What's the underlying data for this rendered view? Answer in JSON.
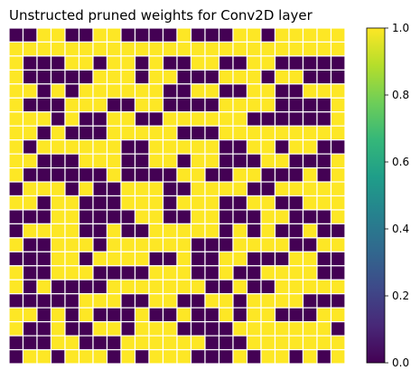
{
  "chart_data": {
    "type": "heatmap",
    "title": "Unstructed pruned weights for Conv2D layer",
    "rows": 24,
    "cols": 24,
    "value_range": [
      0,
      1
    ],
    "colormap": "viridis",
    "low_color": "#440154",
    "high_color": "#fde725",
    "grid": true,
    "grid_color": "#ffffff",
    "axes_visible": false,
    "colorbar": {
      "position": "right",
      "ticks": [
        0,
        0.2,
        0.4,
        0.6,
        0.8,
        1
      ],
      "tick_labels": [
        "0.0",
        "0.2",
        "0.4",
        "0.6",
        "0.8",
        "1.0"
      ]
    },
    "matrix": [
      [
        0,
        0,
        1,
        1,
        0,
        0,
        1,
        1,
        0,
        0,
        0,
        0,
        1,
        0,
        0,
        0,
        1,
        1,
        0,
        1,
        1,
        1,
        1,
        1
      ],
      [
        1,
        1,
        1,
        1,
        1,
        1,
        1,
        1,
        1,
        1,
        1,
        1,
        1,
        1,
        1,
        1,
        1,
        1,
        1,
        1,
        1,
        1,
        1,
        1
      ],
      [
        1,
        0,
        0,
        0,
        1,
        1,
        0,
        1,
        1,
        0,
        1,
        0,
        0,
        1,
        1,
        0,
        0,
        1,
        1,
        0,
        0,
        0,
        0,
        0
      ],
      [
        1,
        0,
        0,
        0,
        0,
        0,
        1,
        1,
        1,
        0,
        1,
        1,
        0,
        0,
        0,
        1,
        1,
        1,
        0,
        1,
        1,
        0,
        0,
        0
      ],
      [
        1,
        1,
        0,
        1,
        0,
        1,
        1,
        1,
        1,
        1,
        1,
        0,
        0,
        1,
        1,
        0,
        0,
        1,
        1,
        0,
        0,
        1,
        1,
        1
      ],
      [
        1,
        0,
        0,
        0,
        1,
        1,
        1,
        0,
        0,
        1,
        1,
        0,
        0,
        0,
        0,
        1,
        1,
        1,
        1,
        0,
        0,
        0,
        0,
        1
      ],
      [
        1,
        1,
        1,
        0,
        1,
        0,
        0,
        1,
        1,
        0,
        0,
        1,
        1,
        1,
        1,
        1,
        1,
        0,
        0,
        0,
        0,
        0,
        0,
        1
      ],
      [
        1,
        1,
        0,
        1,
        0,
        0,
        0,
        1,
        1,
        1,
        1,
        1,
        0,
        0,
        0,
        1,
        1,
        1,
        1,
        1,
        1,
        1,
        1,
        1
      ],
      [
        1,
        0,
        1,
        1,
        1,
        1,
        1,
        1,
        0,
        0,
        1,
        1,
        1,
        1,
        1,
        0,
        0,
        1,
        1,
        0,
        1,
        1,
        0,
        0
      ],
      [
        1,
        1,
        0,
        0,
        0,
        1,
        1,
        1,
        0,
        0,
        1,
        1,
        0,
        1,
        1,
        0,
        0,
        0,
        1,
        1,
        0,
        0,
        0,
        1
      ],
      [
        1,
        0,
        0,
        0,
        0,
        0,
        0,
        1,
        0,
        0,
        0,
        0,
        1,
        1,
        0,
        0,
        1,
        1,
        0,
        0,
        0,
        1,
        0,
        1
      ],
      [
        0,
        1,
        1,
        1,
        0,
        1,
        0,
        0,
        1,
        1,
        1,
        0,
        0,
        1,
        1,
        1,
        1,
        0,
        0,
        1,
        1,
        1,
        1,
        1
      ],
      [
        1,
        1,
        0,
        1,
        1,
        0,
        0,
        0,
        1,
        1,
        1,
        0,
        1,
        1,
        1,
        0,
        0,
        1,
        1,
        0,
        0,
        1,
        1,
        1
      ],
      [
        0,
        0,
        0,
        1,
        1,
        0,
        0,
        0,
        0,
        1,
        1,
        0,
        0,
        1,
        1,
        0,
        0,
        0,
        1,
        1,
        0,
        0,
        0,
        1
      ],
      [
        0,
        1,
        1,
        1,
        1,
        0,
        0,
        1,
        0,
        0,
        1,
        1,
        1,
        1,
        1,
        0,
        1,
        0,
        1,
        0,
        0,
        1,
        0,
        0
      ],
      [
        1,
        0,
        0,
        1,
        1,
        1,
        0,
        1,
        1,
        1,
        1,
        1,
        1,
        0,
        0,
        0,
        1,
        1,
        1,
        1,
        0,
        0,
        1,
        1
      ],
      [
        0,
        0,
        0,
        1,
        1,
        0,
        1,
        1,
        1,
        1,
        0,
        0,
        1,
        0,
        0,
        1,
        1,
        0,
        0,
        0,
        1,
        1,
        0,
        0
      ],
      [
        1,
        0,
        0,
        1,
        1,
        1,
        0,
        0,
        0,
        0,
        1,
        1,
        1,
        0,
        0,
        1,
        0,
        0,
        1,
        1,
        1,
        1,
        0,
        0
      ],
      [
        1,
        0,
        1,
        0,
        0,
        0,
        0,
        1,
        1,
        1,
        1,
        1,
        1,
        1,
        0,
        0,
        1,
        0,
        0,
        1,
        1,
        1,
        1,
        1
      ],
      [
        0,
        0,
        0,
        0,
        0,
        1,
        1,
        1,
        0,
        0,
        1,
        1,
        0,
        0,
        1,
        1,
        0,
        1,
        1,
        1,
        1,
        0,
        0,
        0
      ],
      [
        1,
        1,
        0,
        1,
        0,
        1,
        0,
        0,
        0,
        1,
        0,
        0,
        1,
        0,
        0,
        1,
        0,
        1,
        1,
        0,
        0,
        0,
        1,
        1
      ],
      [
        1,
        0,
        0,
        1,
        0,
        0,
        1,
        1,
        0,
        1,
        1,
        1,
        0,
        0,
        0,
        0,
        1,
        1,
        1,
        1,
        1,
        1,
        1,
        0
      ],
      [
        0,
        0,
        0,
        1,
        1,
        0,
        0,
        0,
        1,
        1,
        1,
        1,
        1,
        1,
        0,
        0,
        0,
        1,
        1,
        1,
        1,
        1,
        1,
        1
      ],
      [
        0,
        1,
        1,
        0,
        1,
        1,
        1,
        0,
        1,
        0,
        1,
        1,
        1,
        0,
        0,
        0,
        1,
        0,
        1,
        1,
        0,
        1,
        0,
        1
      ]
    ]
  }
}
